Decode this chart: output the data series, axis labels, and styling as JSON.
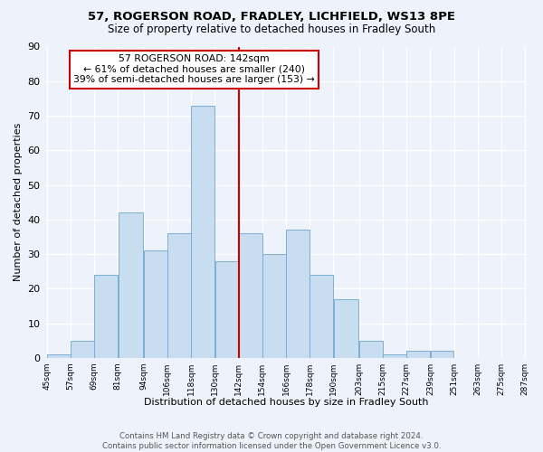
{
  "title": "57, ROGERSON ROAD, FRADLEY, LICHFIELD, WS13 8PE",
  "subtitle": "Size of property relative to detached houses in Fradley South",
  "xlabel": "Distribution of detached houses by size in Fradley South",
  "ylabel": "Number of detached properties",
  "bar_edges": [
    45,
    57,
    69,
    81,
    94,
    106,
    118,
    130,
    142,
    154,
    166,
    178,
    190,
    203,
    215,
    227,
    239,
    251,
    263,
    275,
    287
  ],
  "bar_heights": [
    1,
    5,
    24,
    42,
    31,
    36,
    73,
    28,
    36,
    30,
    37,
    24,
    17,
    5,
    1,
    2,
    2,
    0,
    0,
    0
  ],
  "bar_color": "#c9ddf0",
  "bar_edgecolor": "#7bafd4",
  "property_line_x": 142,
  "ylim": [
    0,
    90
  ],
  "yticks": [
    0,
    10,
    20,
    30,
    40,
    50,
    60,
    70,
    80,
    90
  ],
  "xtick_labels": [
    "45sqm",
    "57sqm",
    "69sqm",
    "81sqm",
    "94sqm",
    "106sqm",
    "118sqm",
    "130sqm",
    "142sqm",
    "154sqm",
    "166sqm",
    "178sqm",
    "190sqm",
    "203sqm",
    "215sqm",
    "227sqm",
    "239sqm",
    "251sqm",
    "263sqm",
    "275sqm",
    "287sqm"
  ],
  "annotation_title": "57 ROGERSON ROAD: 142sqm",
  "annotation_line1": "← 61% of detached houses are smaller (240)",
  "annotation_line2": "39% of semi-detached houses are larger (153) →",
  "footer_line1": "Contains HM Land Registry data © Crown copyright and database right 2024.",
  "footer_line2": "Contains public sector information licensed under the Open Government Licence v3.0.",
  "background_color": "#eef2fb",
  "grid_color": "#ffffff",
  "line_color": "#cc0000"
}
